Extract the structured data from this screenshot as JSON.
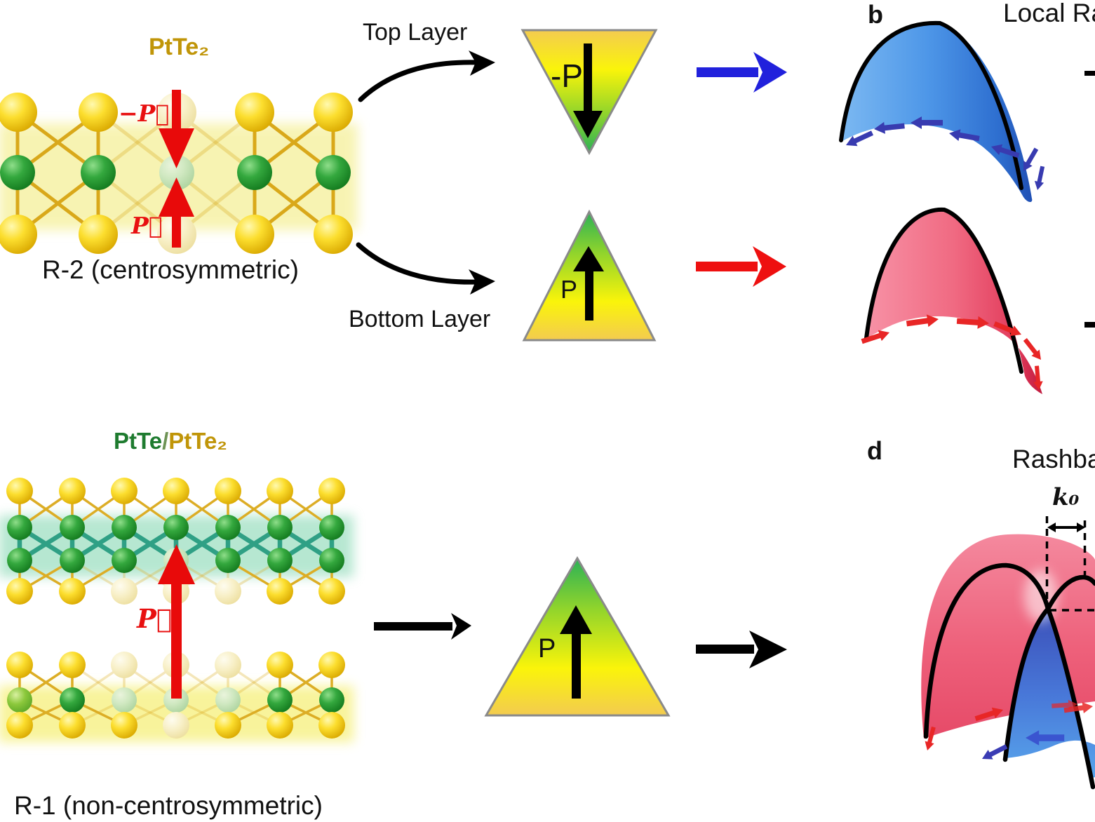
{
  "structure_r2": {
    "title": "PtTe₂",
    "neg_polarization_label": "−P⃗",
    "polarization_label": "P⃗",
    "caption": "R-2 (centrosymmetric)"
  },
  "layer_flow": {
    "top_layer_label": "Top Layer",
    "bottom_layer_label": "Bottom Layer",
    "inverted_triangle_label": "-P",
    "upright_triangle_label": "P"
  },
  "panel_b": {
    "letter": "b",
    "title": "Local Ra"
  },
  "structure_r1": {
    "title_ptte": "PtTe",
    "title_separator": "/",
    "title_ptte2": "PtTe₂",
    "polarization_label": "P⃗",
    "caption": "R-1 (non-centrosymmetric)"
  },
  "bottom_flow": {
    "triangle_label": "P"
  },
  "panel_d": {
    "letter": "d",
    "title": "Rashba",
    "k0_label": "k₀"
  },
  "colors": {
    "gold_label": "#C09508",
    "green_label": "#1E7B2F",
    "red_accent": "#EE1010",
    "blue_accent": "#2121DC",
    "te_atom_yellow": "#F2CE00",
    "pt_atom_green": "#2E9E35",
    "triangle_green": "#2BB156",
    "triangle_yellow": "#FAF40A",
    "triangle_gold": "#F3CB50",
    "dome_blue": "#4E97E8",
    "dome_red": "#EE5570",
    "spin_arrow_blue": "#383BB0",
    "spin_arrow_red": "#E82626"
  }
}
